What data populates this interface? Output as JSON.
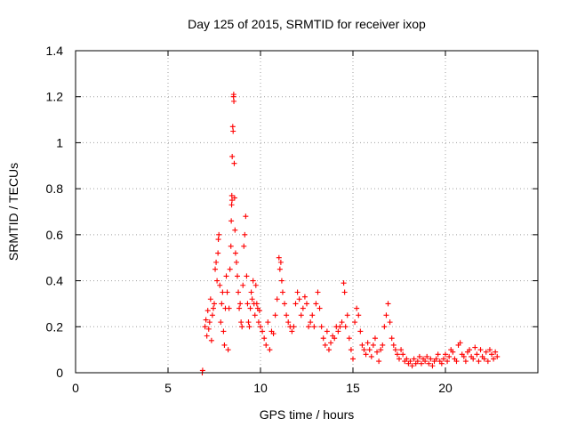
{
  "chart_data": {
    "type": "scatter",
    "title": "Day 125 of 2015, SRMTID for receiver ixop",
    "xlabel": "GPS time / hours",
    "ylabel": "SRMTID / TECUs",
    "xlim": [
      0,
      25
    ],
    "ylim": [
      0,
      1.4
    ],
    "x_ticks": [
      0,
      5,
      10,
      15,
      20
    ],
    "y_ticks": [
      0,
      0.2,
      0.4,
      0.6,
      0.8,
      1.0,
      1.2,
      1.4
    ],
    "x_tick_labels": [
      "0",
      "5",
      "10",
      "15",
      "20"
    ],
    "y_tick_labels": [
      "0",
      "0.2",
      "0.4",
      "0.6",
      "0.8",
      "1",
      "1.2",
      "1.4"
    ],
    "grid": true,
    "marker": "+",
    "series": [
      {
        "name": "SRMTID",
        "color": "#ff0000",
        "points": [
          [
            6.85,
            0.0
          ],
          [
            6.87,
            0.01
          ],
          [
            7.0,
            0.2
          ],
          [
            7.05,
            0.23
          ],
          [
            7.1,
            0.16
          ],
          [
            7.15,
            0.27
          ],
          [
            7.2,
            0.19
          ],
          [
            7.25,
            0.22
          ],
          [
            7.3,
            0.32
          ],
          [
            7.35,
            0.14
          ],
          [
            7.4,
            0.25
          ],
          [
            7.45,
            0.28
          ],
          [
            7.5,
            0.3
          ],
          [
            7.55,
            0.45
          ],
          [
            7.6,
            0.48
          ],
          [
            7.65,
            0.4
          ],
          [
            7.7,
            0.52
          ],
          [
            7.72,
            0.58
          ],
          [
            7.75,
            0.6
          ],
          [
            7.8,
            0.38
          ],
          [
            7.85,
            0.22
          ],
          [
            7.9,
            0.3
          ],
          [
            7.95,
            0.35
          ],
          [
            8.0,
            0.18
          ],
          [
            8.05,
            0.12
          ],
          [
            8.1,
            0.28
          ],
          [
            8.15,
            0.42
          ],
          [
            8.2,
            0.35
          ],
          [
            8.25,
            0.1
          ],
          [
            8.3,
            0.28
          ],
          [
            8.35,
            0.45
          ],
          [
            8.4,
            0.55
          ],
          [
            8.42,
            0.66
          ],
          [
            8.44,
            0.73
          ],
          [
            8.45,
            0.77
          ],
          [
            8.46,
            0.75
          ],
          [
            8.47,
            0.94
          ],
          [
            8.5,
            1.07
          ],
          [
            8.52,
            1.05
          ],
          [
            8.54,
            1.2
          ],
          [
            8.55,
            1.21
          ],
          [
            8.56,
            1.18
          ],
          [
            8.58,
            0.91
          ],
          [
            8.6,
            0.76
          ],
          [
            8.62,
            0.62
          ],
          [
            8.65,
            0.52
          ],
          [
            8.7,
            0.48
          ],
          [
            8.75,
            0.42
          ],
          [
            8.8,
            0.35
          ],
          [
            8.85,
            0.28
          ],
          [
            8.9,
            0.3
          ],
          [
            8.95,
            0.22
          ],
          [
            9.0,
            0.2
          ],
          [
            9.05,
            0.38
          ],
          [
            9.1,
            0.55
          ],
          [
            9.15,
            0.6
          ],
          [
            9.2,
            0.68
          ],
          [
            9.25,
            0.42
          ],
          [
            9.3,
            0.3
          ],
          [
            9.35,
            0.22
          ],
          [
            9.4,
            0.2
          ],
          [
            9.45,
            0.28
          ],
          [
            9.5,
            0.35
          ],
          [
            9.55,
            0.32
          ],
          [
            9.6,
            0.4
          ],
          [
            9.65,
            0.3
          ],
          [
            9.7,
            0.25
          ],
          [
            9.75,
            0.38
          ],
          [
            9.8,
            0.3
          ],
          [
            9.85,
            0.28
          ],
          [
            9.9,
            0.22
          ],
          [
            9.95,
            0.27
          ],
          [
            10.0,
            0.2
          ],
          [
            10.1,
            0.18
          ],
          [
            10.2,
            0.15
          ],
          [
            10.3,
            0.12
          ],
          [
            10.4,
            0.22
          ],
          [
            10.5,
            0.1
          ],
          [
            10.6,
            0.18
          ],
          [
            10.7,
            0.17
          ],
          [
            10.8,
            0.25
          ],
          [
            10.9,
            0.32
          ],
          [
            11.0,
            0.5
          ],
          [
            11.05,
            0.45
          ],
          [
            11.1,
            0.48
          ],
          [
            11.15,
            0.4
          ],
          [
            11.2,
            0.35
          ],
          [
            11.3,
            0.3
          ],
          [
            11.4,
            0.25
          ],
          [
            11.5,
            0.22
          ],
          [
            11.6,
            0.2
          ],
          [
            11.7,
            0.18
          ],
          [
            11.8,
            0.2
          ],
          [
            11.9,
            0.3
          ],
          [
            12.0,
            0.35
          ],
          [
            12.1,
            0.32
          ],
          [
            12.2,
            0.25
          ],
          [
            12.3,
            0.28
          ],
          [
            12.4,
            0.33
          ],
          [
            12.5,
            0.3
          ],
          [
            12.6,
            0.2
          ],
          [
            12.7,
            0.22
          ],
          [
            12.8,
            0.25
          ],
          [
            12.9,
            0.2
          ],
          [
            13.0,
            0.3
          ],
          [
            13.1,
            0.35
          ],
          [
            13.2,
            0.28
          ],
          [
            13.3,
            0.2
          ],
          [
            13.4,
            0.15
          ],
          [
            13.5,
            0.12
          ],
          [
            13.6,
            0.18
          ],
          [
            13.7,
            0.1
          ],
          [
            13.8,
            0.13
          ],
          [
            13.9,
            0.16
          ],
          [
            14.0,
            0.15
          ],
          [
            14.1,
            0.2
          ],
          [
            14.2,
            0.18
          ],
          [
            14.3,
            0.2
          ],
          [
            14.4,
            0.22
          ],
          [
            14.5,
            0.39
          ],
          [
            14.55,
            0.35
          ],
          [
            14.6,
            0.2
          ],
          [
            14.7,
            0.25
          ],
          [
            14.8,
            0.15
          ],
          [
            14.9,
            0.1
          ],
          [
            15.0,
            0.06
          ],
          [
            15.1,
            0.22
          ],
          [
            15.2,
            0.28
          ],
          [
            15.3,
            0.25
          ],
          [
            15.4,
            0.18
          ],
          [
            15.5,
            0.12
          ],
          [
            15.6,
            0.1
          ],
          [
            15.7,
            0.08
          ],
          [
            15.8,
            0.13
          ],
          [
            15.9,
            0.1
          ],
          [
            16.0,
            0.07
          ],
          [
            16.1,
            0.12
          ],
          [
            16.2,
            0.15
          ],
          [
            16.3,
            0.09
          ],
          [
            16.4,
            0.05
          ],
          [
            16.5,
            0.1
          ],
          [
            16.6,
            0.12
          ],
          [
            16.7,
            0.2
          ],
          [
            16.8,
            0.25
          ],
          [
            16.9,
            0.3
          ],
          [
            17.0,
            0.22
          ],
          [
            17.1,
            0.15
          ],
          [
            17.2,
            0.12
          ],
          [
            17.3,
            0.1
          ],
          [
            17.4,
            0.08
          ],
          [
            17.5,
            0.06
          ],
          [
            17.6,
            0.1
          ],
          [
            17.7,
            0.08
          ],
          [
            17.8,
            0.05
          ],
          [
            17.9,
            0.06
          ],
          [
            18.0,
            0.04
          ],
          [
            18.1,
            0.05
          ],
          [
            18.2,
            0.03
          ],
          [
            18.3,
            0.06
          ],
          [
            18.4,
            0.04
          ],
          [
            18.5,
            0.05
          ],
          [
            18.6,
            0.07
          ],
          [
            18.7,
            0.04
          ],
          [
            18.8,
            0.06
          ],
          [
            18.9,
            0.05
          ],
          [
            19.0,
            0.07
          ],
          [
            19.1,
            0.04
          ],
          [
            19.2,
            0.06
          ],
          [
            19.3,
            0.03
          ],
          [
            19.4,
            0.05
          ],
          [
            19.5,
            0.06
          ],
          [
            19.6,
            0.08
          ],
          [
            19.7,
            0.05
          ],
          [
            19.8,
            0.04
          ],
          [
            19.9,
            0.06
          ],
          [
            20.0,
            0.08
          ],
          [
            20.1,
            0.05
          ],
          [
            20.2,
            0.07
          ],
          [
            20.3,
            0.1
          ],
          [
            20.4,
            0.09
          ],
          [
            20.5,
            0.06
          ],
          [
            20.6,
            0.05
          ],
          [
            20.7,
            0.12
          ],
          [
            20.8,
            0.13
          ],
          [
            20.9,
            0.08
          ],
          [
            21.0,
            0.07
          ],
          [
            21.1,
            0.05
          ],
          [
            21.2,
            0.09
          ],
          [
            21.3,
            0.1
          ],
          [
            21.4,
            0.07
          ],
          [
            21.5,
            0.06
          ],
          [
            21.6,
            0.11
          ],
          [
            21.7,
            0.08
          ],
          [
            21.8,
            0.05
          ],
          [
            21.9,
            0.1
          ],
          [
            22.0,
            0.07
          ],
          [
            22.1,
            0.06
          ],
          [
            22.2,
            0.09
          ],
          [
            22.3,
            0.05
          ],
          [
            22.4,
            0.1
          ],
          [
            22.5,
            0.08
          ],
          [
            22.6,
            0.06
          ],
          [
            22.7,
            0.09
          ],
          [
            22.8,
            0.07
          ]
        ]
      }
    ]
  }
}
